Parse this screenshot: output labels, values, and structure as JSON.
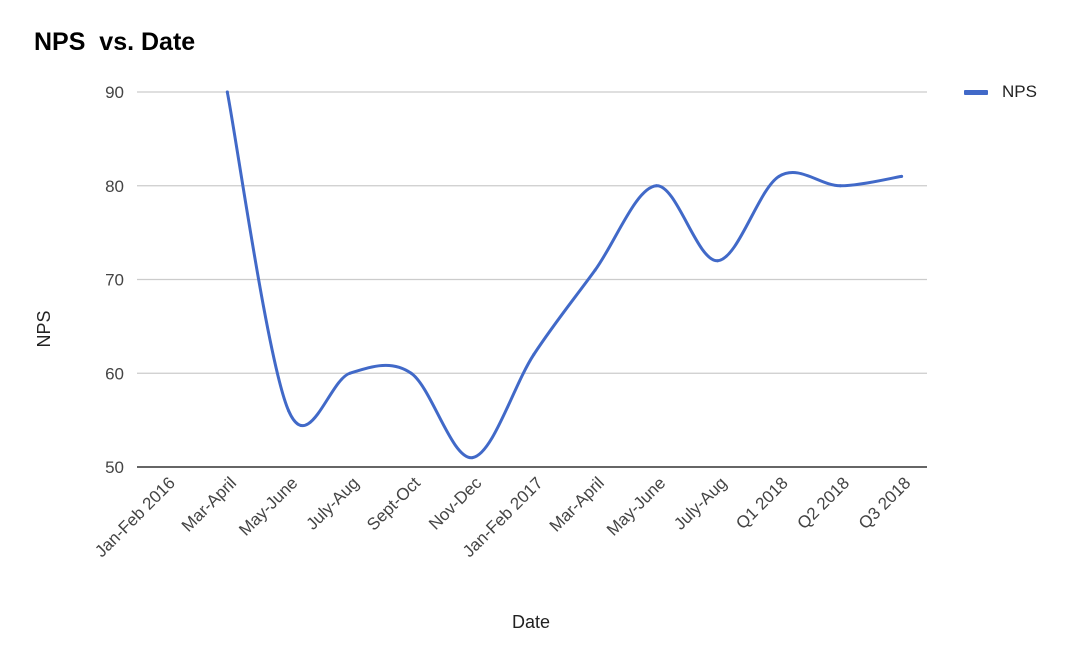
{
  "chart_data": {
    "type": "line",
    "title": "NPS  vs. Date",
    "xlabel": "Date",
    "ylabel": "NPS",
    "categories": [
      "Jan-Feb 2016",
      "Mar-April",
      "May-June",
      "July-Aug",
      "Sept-Oct",
      "Nov-Dec",
      "Jan-Feb 2017",
      "Mar-April",
      "May-June",
      "July-Aug",
      "Q1 2018",
      "Q2 2018",
      "Q3 2018"
    ],
    "series": [
      {
        "name": "NPS",
        "values": [
          null,
          90,
          56,
          60,
          60,
          51,
          62,
          71,
          80,
          72,
          81,
          80,
          81
        ]
      }
    ],
    "ylim": [
      50,
      90
    ],
    "yticks": [
      50,
      60,
      70,
      80,
      90
    ],
    "grid": true,
    "legend": "right",
    "smooth": true,
    "colors": {
      "series": "#4169c8",
      "grid": "#cccccc",
      "axis": "#333333"
    }
  }
}
